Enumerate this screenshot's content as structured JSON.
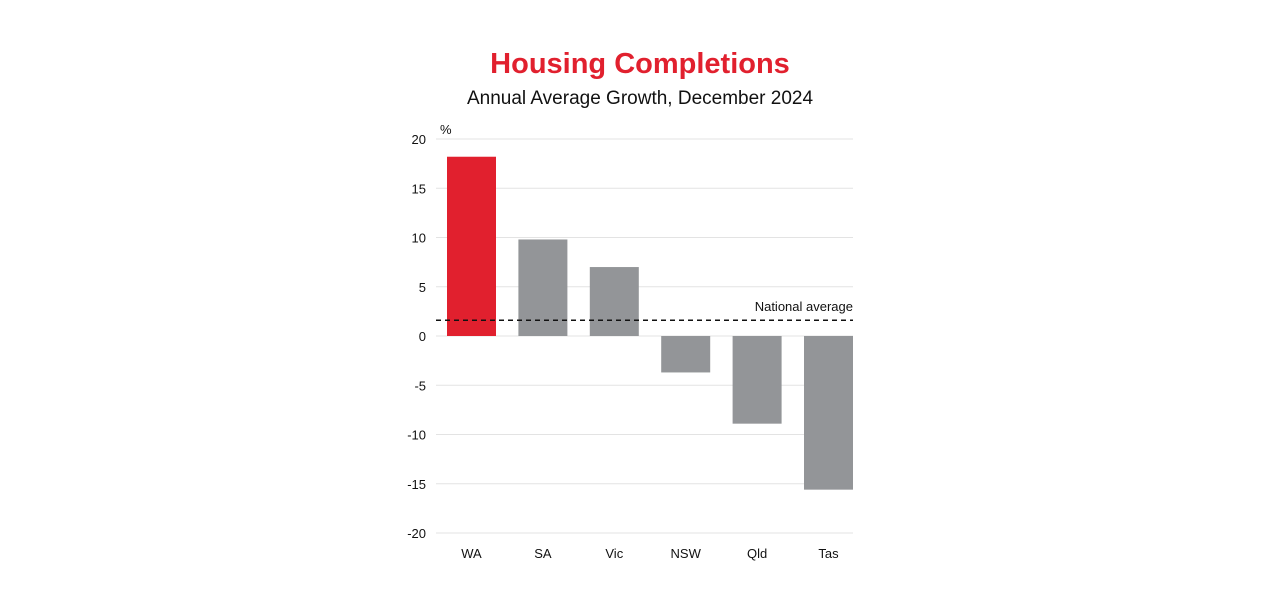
{
  "chart_data": {
    "type": "bar",
    "title": "Housing Completions",
    "subtitle": "Annual Average Growth, December 2024",
    "ylabel": "%",
    "xlabel": "",
    "categories": [
      "WA",
      "SA",
      "Vic",
      "NSW",
      "Qld",
      "Tas"
    ],
    "values": [
      18.2,
      9.8,
      7.0,
      -3.7,
      -8.9,
      -15.6
    ],
    "ylim": [
      -20,
      20
    ],
    "yticks": [
      20,
      15,
      10,
      5,
      0,
      -5,
      -10,
      -15,
      -20
    ],
    "ytick_labels": [
      "20",
      "15",
      "10",
      "5",
      "0",
      "-5",
      "-10",
      "-15",
      "-20"
    ],
    "grid": true,
    "highlight_category": "WA",
    "reference_line": {
      "label": "National average",
      "value": 1.6,
      "style": "dashed"
    },
    "colors": {
      "title": "#e1202e",
      "highlight": "#e1202e",
      "bar": "#939598",
      "grid": "#e3e3e3",
      "reference": "#111111"
    }
  }
}
